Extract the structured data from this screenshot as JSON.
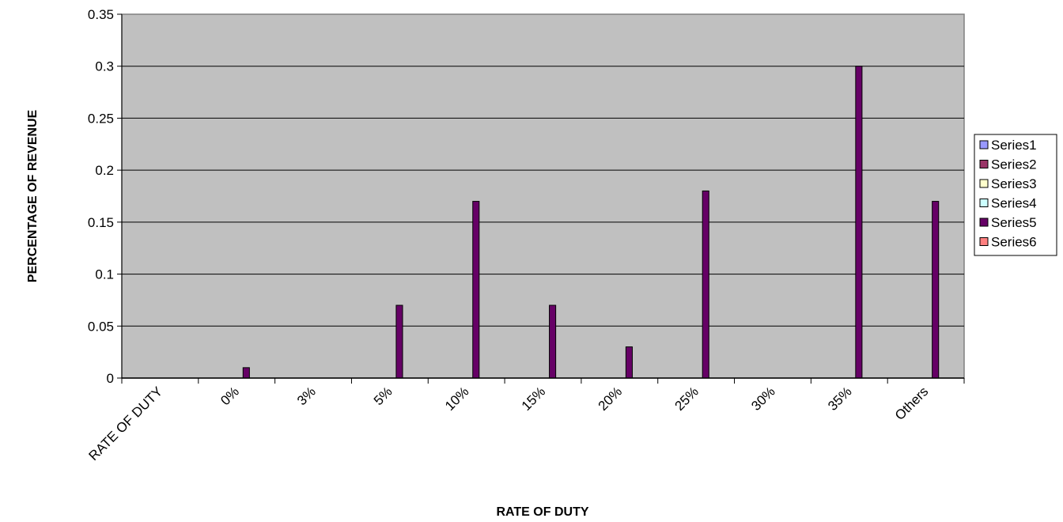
{
  "chart_data": {
    "type": "bar",
    "title": "",
    "xlabel": "RATE OF DUTY",
    "ylabel": "PERCENTAGE OF REVENUE",
    "categories": [
      "RATE OF DUTY",
      "0%",
      "3%",
      "5%",
      "10%",
      "15%",
      "20%",
      "25%",
      "30%",
      "35%",
      "Others"
    ],
    "ylim": [
      0,
      0.35
    ],
    "yticks": [
      "0",
      "0.05",
      "0.1",
      "0.15",
      "0.2",
      "0.25",
      "0.3",
      "0.35"
    ],
    "grid": true,
    "legend_position": "right",
    "plot_background": "#c0c0c0",
    "series": [
      {
        "name": "Series1",
        "color": "#9999ff",
        "values": [
          null,
          null,
          null,
          null,
          null,
          null,
          null,
          null,
          null,
          null,
          null
        ]
      },
      {
        "name": "Series2",
        "color": "#993366",
        "values": [
          null,
          null,
          null,
          null,
          null,
          null,
          null,
          null,
          null,
          null,
          null
        ]
      },
      {
        "name": "Series3",
        "color": "#ffffcc",
        "values": [
          null,
          null,
          null,
          null,
          null,
          null,
          null,
          null,
          null,
          null,
          null
        ]
      },
      {
        "name": "Series4",
        "color": "#ccffff",
        "values": [
          null,
          null,
          null,
          null,
          null,
          null,
          null,
          null,
          null,
          null,
          null
        ]
      },
      {
        "name": "Series5",
        "color": "#660066",
        "values": [
          null,
          0.01,
          0,
          0.07,
          0.17,
          0.07,
          0.03,
          0.18,
          0,
          0.3,
          0.17
        ]
      },
      {
        "name": "Series6",
        "color": "#ff8080",
        "values": [
          null,
          null,
          null,
          null,
          null,
          null,
          null,
          null,
          null,
          null,
          null
        ]
      }
    ]
  }
}
